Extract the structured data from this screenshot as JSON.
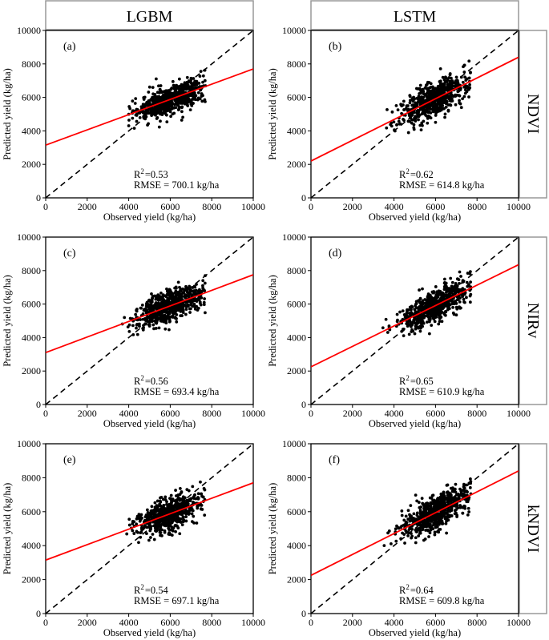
{
  "columns": [
    "LGBM",
    "LSTM"
  ],
  "rows": [
    "NDVI",
    "NIRv",
    "kNDVI"
  ],
  "chart_data": [
    {
      "type": "scatter",
      "panel": "(a)",
      "model": "LGBM",
      "index": "NDVI",
      "xlabel": "Observed yield (kg/ha)",
      "ylabel": "Predicted yield (kg/ha)",
      "xlim": [
        0,
        10000
      ],
      "ylim": [
        0,
        10000
      ],
      "ticks": [
        "0",
        "2000",
        "4000",
        "6000",
        "8000",
        "10000"
      ],
      "fit_line": {
        "intercept": 3150,
        "slope": 0.455
      },
      "one_to_one": true,
      "r2_label": "R",
      "r2_value": "=0.53",
      "rmse_text": "RMSE = 700.1 kg/ha",
      "cloud": {
        "x_center": 6000,
        "x_sd": 1050,
        "x_min": 1500,
        "x_max": 7700,
        "y_sd": 470,
        "seed": 11
      }
    },
    {
      "type": "scatter",
      "panel": "(b)",
      "model": "LSTM",
      "index": "NDVI",
      "xlabel": "Observed yield (kg/ha)",
      "ylabel": "Predicted yield (kg/ha)",
      "xlim": [
        0,
        10000
      ],
      "ylim": [
        0,
        10000
      ],
      "ticks": [
        "0",
        "2000",
        "4000",
        "6000",
        "8000",
        "10000"
      ],
      "fit_line": {
        "intercept": 2200,
        "slope": 0.62
      },
      "one_to_one": true,
      "r2_label": "R",
      "r2_value": "=0.62",
      "rmse_text": "RMSE = 614.8 kg/ha",
      "cloud": {
        "x_center": 6000,
        "x_sd": 1050,
        "x_min": 1500,
        "x_max": 7700,
        "y_sd": 480,
        "seed": 23
      }
    },
    {
      "type": "scatter",
      "panel": "(c)",
      "model": "LGBM",
      "index": "NIRv",
      "xlabel": "Observed yield (kg/ha)",
      "ylabel": "Predicted yield (kg/ha)",
      "xlim": [
        0,
        10000
      ],
      "ylim": [
        0,
        10000
      ],
      "ticks": [
        "0",
        "2000",
        "4000",
        "6000",
        "8000",
        "10000"
      ],
      "fit_line": {
        "intercept": 3100,
        "slope": 0.465
      },
      "one_to_one": true,
      "r2_label": "R",
      "r2_value": "=0.56",
      "rmse_text": "RMSE = 693.4 kg/ha",
      "cloud": {
        "x_center": 6000,
        "x_sd": 1050,
        "x_min": 1500,
        "x_max": 7700,
        "y_sd": 450,
        "seed": 37
      }
    },
    {
      "type": "scatter",
      "panel": "(d)",
      "model": "LSTM",
      "index": "NIRv",
      "xlabel": "Observed yield (kg/ha)",
      "ylabel": "Predicted yield (kg/ha)",
      "xlim": [
        0,
        10000
      ],
      "ylim": [
        0,
        10000
      ],
      "ticks": [
        "0",
        "2000",
        "4000",
        "6000",
        "8000",
        "10000"
      ],
      "fit_line": {
        "intercept": 2250,
        "slope": 0.61
      },
      "one_to_one": true,
      "r2_label": "R",
      "r2_value": "=0.65",
      "rmse_text": "RMSE = 610.9 kg/ha",
      "cloud": {
        "x_center": 6000,
        "x_sd": 1050,
        "x_min": 1500,
        "x_max": 7700,
        "y_sd": 460,
        "seed": 41
      }
    },
    {
      "type": "scatter",
      "panel": "(e)",
      "model": "LGBM",
      "index": "kNDVI",
      "xlabel": "Observed yield (kg/ha)",
      "ylabel": "Predicted yield (kg/ha)",
      "xlim": [
        0,
        10000
      ],
      "ylim": [
        0,
        10000
      ],
      "ticks": [
        "0",
        "2000",
        "4000",
        "6000",
        "8000",
        "10000"
      ],
      "fit_line": {
        "intercept": 3150,
        "slope": 0.455
      },
      "one_to_one": true,
      "r2_label": "R",
      "r2_value": "=0.54",
      "rmse_text": "RMSE = 697.1 kg/ha",
      "cloud": {
        "x_center": 6000,
        "x_sd": 1050,
        "x_min": 1500,
        "x_max": 7700,
        "y_sd": 460,
        "seed": 53
      }
    },
    {
      "type": "scatter",
      "panel": "(f)",
      "model": "LSTM",
      "index": "kNDVI",
      "xlabel": "Observed yield (kg/ha)",
      "ylabel": "Predicted yield (kg/ha)",
      "xlim": [
        0,
        10000
      ],
      "ylim": [
        0,
        10000
      ],
      "ticks": [
        "0",
        "2000",
        "4000",
        "6000",
        "8000",
        "10000"
      ],
      "fit_line": {
        "intercept": 2250,
        "slope": 0.615
      },
      "one_to_one": true,
      "r2_label": "R",
      "r2_value": "=0.64",
      "rmse_text": "RMSE = 609.8 kg/ha",
      "cloud": {
        "x_center": 6000,
        "x_sd": 1050,
        "x_min": 1500,
        "x_max": 7700,
        "y_sd": 470,
        "seed": 67
      }
    }
  ],
  "colors": {
    "points": "#000000",
    "fit_line": "#ff0000",
    "one_to_one": "#000000",
    "header_border": "#999999"
  }
}
